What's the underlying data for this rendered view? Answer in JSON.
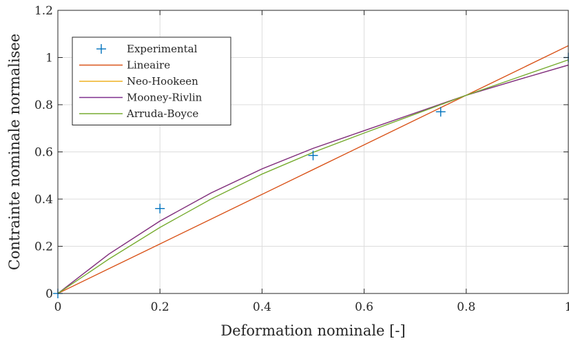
{
  "chart_data": {
    "type": "line",
    "xlabel": "Deformation nominale [-]",
    "ylabel": "Contrainte nominale normalisee",
    "xlim": [
      0,
      1
    ],
    "ylim": [
      0,
      1.2
    ],
    "xticks": [
      0,
      0.2,
      0.4,
      0.6,
      0.8,
      1
    ],
    "yticks": [
      0,
      0.2,
      0.4,
      0.6,
      0.8,
      1,
      1.2
    ],
    "xtick_labels": [
      "0",
      "0.2",
      "0.4",
      "0.6",
      "0.8",
      "1"
    ],
    "ytick_labels": [
      "0",
      "0.2",
      "0.4",
      "0.6",
      "0.8",
      "1",
      "1.2"
    ],
    "grid": true,
    "legend_position": "top-left",
    "series": [
      {
        "name": "Experimental",
        "kind": "scatter",
        "marker": "plus",
        "color": "#0072BD",
        "x": [
          0,
          0.2,
          0.5,
          0.75,
          1.0
        ],
        "y": [
          0,
          0.36,
          0.585,
          0.77,
          1.0
        ]
      },
      {
        "name": "Lineaire",
        "kind": "line",
        "color": "#D95319",
        "x": [
          0,
          0.1,
          0.2,
          0.3,
          0.4,
          0.5,
          0.6,
          0.7,
          0.8,
          0.9,
          1.0
        ],
        "y": [
          0,
          0.105,
          0.21,
          0.315,
          0.42,
          0.525,
          0.63,
          0.735,
          0.84,
          0.945,
          1.05
        ]
      },
      {
        "name": "Neo-Hookeen",
        "kind": "line",
        "color": "#EDB120",
        "x": [
          0,
          0.1,
          0.2,
          0.3,
          0.4,
          0.5,
          0.6,
          0.7,
          0.8,
          0.9,
          1.0
        ],
        "y": [
          0,
          0.167,
          0.307,
          0.426,
          0.528,
          0.615,
          0.69,
          0.765,
          0.84,
          0.905,
          0.968
        ]
      },
      {
        "name": "Mooney-Rivlin",
        "kind": "line",
        "color": "#7E2F8E",
        "x": [
          0,
          0.1,
          0.2,
          0.3,
          0.4,
          0.5,
          0.6,
          0.7,
          0.8,
          0.9,
          1.0
        ],
        "y": [
          0,
          0.167,
          0.307,
          0.426,
          0.528,
          0.615,
          0.69,
          0.765,
          0.84,
          0.905,
          0.968
        ]
      },
      {
        "name": "Arruda-Boyce",
        "kind": "line",
        "color": "#77AC30",
        "x": [
          0,
          0.1,
          0.2,
          0.3,
          0.4,
          0.5,
          0.6,
          0.7,
          0.8,
          0.9,
          1.0
        ],
        "y": [
          0,
          0.146,
          0.28,
          0.4,
          0.506,
          0.598,
          0.68,
          0.76,
          0.84,
          0.915,
          0.99
        ]
      }
    ]
  }
}
